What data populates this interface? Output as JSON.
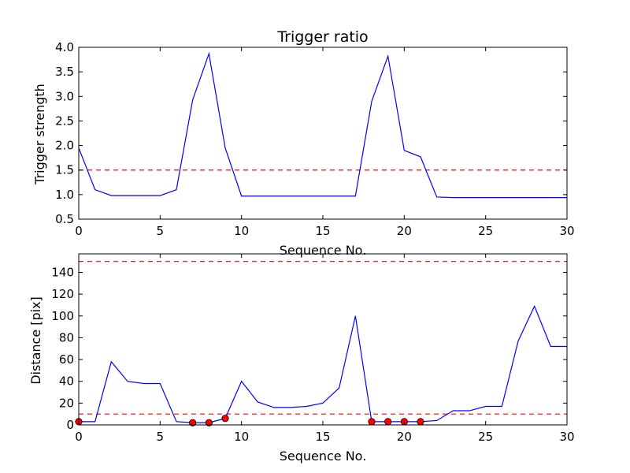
{
  "chart_data": [
    {
      "type": "line",
      "title": "Trigger ratio",
      "xlabel": "Sequence No.",
      "ylabel": "Trigger strength",
      "xlim": [
        0,
        30
      ],
      "ylim": [
        0.5,
        4.0
      ],
      "xticks": [
        0,
        5,
        10,
        15,
        20,
        25,
        30
      ],
      "yticks": [
        0.5,
        1.0,
        1.5,
        2.0,
        2.5,
        3.0,
        3.5,
        4.0
      ],
      "x": [
        0,
        1,
        2,
        3,
        4,
        5,
        6,
        7,
        8,
        9,
        10,
        11,
        12,
        13,
        14,
        15,
        16,
        17,
        18,
        19,
        20,
        21,
        22,
        23,
        24,
        25,
        26,
        27,
        28,
        29,
        30
      ],
      "series": [
        {
          "color": "#0000ff",
          "values": [
            1.95,
            1.1,
            0.98,
            0.98,
            0.98,
            0.98,
            1.1,
            2.93,
            3.87,
            1.95,
            0.97,
            0.97,
            0.97,
            0.97,
            0.97,
            0.97,
            0.97,
            0.97,
            2.9,
            3.82,
            1.9,
            1.77,
            0.95,
            0.94,
            0.94,
            0.94,
            0.94,
            0.94,
            0.94,
            0.94,
            0.94
          ]
        }
      ],
      "reference_lines": [
        {
          "y": 1.5,
          "color": "#ff0000",
          "style": "dashed"
        }
      ]
    },
    {
      "type": "line",
      "xlabel": "Sequence No.",
      "ylabel": "Distance [pix]",
      "xlim": [
        0,
        30
      ],
      "ylim": [
        0,
        157
      ],
      "xticks": [
        0,
        5,
        10,
        15,
        20,
        25,
        30
      ],
      "yticks": [
        0,
        20,
        40,
        60,
        80,
        100,
        120,
        140
      ],
      "x": [
        0,
        1,
        2,
        3,
        4,
        5,
        6,
        7,
        8,
        9,
        10,
        11,
        12,
        13,
        14,
        15,
        16,
        17,
        18,
        19,
        20,
        21,
        22,
        23,
        24,
        25,
        26,
        27,
        28,
        29,
        30
      ],
      "series": [
        {
          "color": "#0000ff",
          "values": [
            3,
            3,
            58,
            40,
            38,
            38,
            3,
            2,
            2,
            6,
            40,
            21,
            16,
            16,
            17,
            20,
            34,
            100,
            3,
            3,
            3,
            3,
            4,
            13,
            13,
            17,
            17,
            77,
            109,
            72,
            72
          ]
        }
      ],
      "markers": {
        "color": "#ff0000",
        "points": [
          [
            0,
            3
          ],
          [
            7,
            2
          ],
          [
            8,
            2
          ],
          [
            9,
            6
          ],
          [
            18,
            3
          ],
          [
            19,
            3
          ],
          [
            20,
            3
          ],
          [
            21,
            3
          ]
        ]
      },
      "reference_lines": [
        {
          "y": 150,
          "color": "#ff0000",
          "style": "dashed"
        },
        {
          "y": 10,
          "color": "#ff0000",
          "style": "dashed"
        }
      ]
    }
  ]
}
